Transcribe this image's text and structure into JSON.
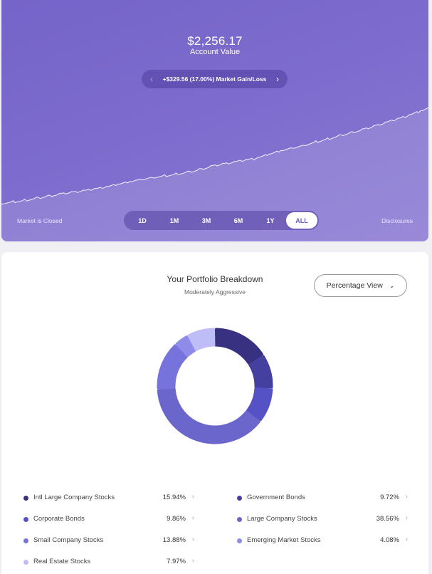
{
  "header": {
    "account_value": "$2,256.17",
    "account_label": "Account Value",
    "gain": {
      "text": "+$329.56 (17.00%) Market Gain/Loss",
      "prev_icon": "chevron-left-icon",
      "next_icon": "chevron-right-icon"
    },
    "market_status": "Market is Closed",
    "disclosures": "Disclosures",
    "ranges": [
      "1D",
      "1M",
      "3M",
      "6M",
      "1Y",
      "ALL"
    ],
    "active_range": "ALL",
    "colors": {
      "bg_start": "#7564c9",
      "bg_end": "#8a78d2",
      "line": "#ffffff"
    }
  },
  "chart_data": {
    "type": "area",
    "x": [
      0,
      5,
      10,
      15,
      20,
      25,
      30,
      35,
      40,
      45,
      50,
      55,
      60,
      65,
      70,
      75,
      80,
      85,
      90,
      95,
      100
    ],
    "y": [
      0,
      3,
      7,
      11,
      14,
      18,
      23,
      27,
      30,
      34,
      40,
      44,
      48,
      55,
      60,
      66,
      72,
      78,
      85,
      92,
      100
    ],
    "title": "",
    "xlabel": "",
    "ylabel": "",
    "grid": false
  },
  "breakdown": {
    "title": "Your Portfolio Breakdown",
    "subtitle": "Moderately Aggressive",
    "view_label": "Percentage View",
    "view_icon": "chevron-down-icon"
  },
  "allocation": [
    {
      "name": "Intl Large Company Stocks",
      "pct": "15.94%",
      "value": 15.94,
      "color": "#383182"
    },
    {
      "name": "Government Bonds",
      "pct": "9.72%",
      "value": 9.72,
      "color": "#4440a0"
    },
    {
      "name": "Corporate Bonds",
      "pct": "9.86%",
      "value": 9.86,
      "color": "#5552c6"
    },
    {
      "name": "Large Company Stocks",
      "pct": "38.56%",
      "value": 38.56,
      "color": "#6b66cc"
    },
    {
      "name": "Small Company Stocks",
      "pct": "13.88%",
      "value": 13.88,
      "color": "#7773dc"
    },
    {
      "name": "Emerging Market Stocks",
      "pct": "4.08%",
      "value": 4.08,
      "color": "#8f8bea"
    },
    {
      "name": "Real Estate Stocks",
      "pct": "7.97%",
      "value": 7.97,
      "color": "#bfbdf8"
    }
  ],
  "legend_chevron_icon": "chevron-right-icon"
}
